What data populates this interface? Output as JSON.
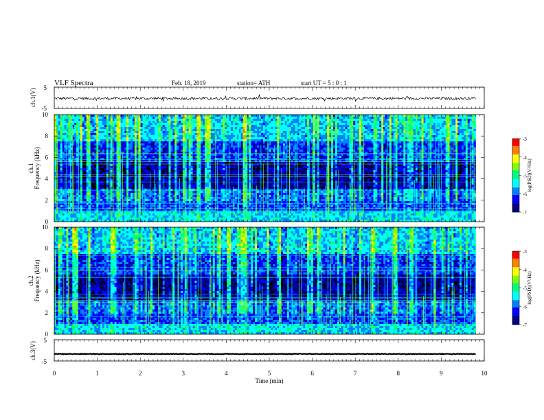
{
  "header": {
    "title": "VLF  Spectra",
    "date": "Feb. 18, 2019",
    "station": "station= ATH",
    "start_ut": "start  UT  =    5  : 0   : 1"
  },
  "chart_data": [
    {
      "type": "line",
      "name": "ch1-waveform",
      "ylabel": "ch.1(V)",
      "ylim": [
        -5,
        5
      ],
      "yticks": [
        "5",
        "-5"
      ],
      "xlim": [
        0,
        10
      ],
      "x_extent_min": 9.8,
      "baseline": -0.3,
      "noise": 0.6
    },
    {
      "type": "heatmap",
      "name": "ch1-spectrogram",
      "ylabel": "ch.1\nFrequency  (kHz)",
      "ylim": [
        0,
        10
      ],
      "yticks": [
        "0",
        "2",
        "4",
        "6",
        "8",
        "10"
      ],
      "xlim": [
        0,
        10
      ],
      "x_extent_min": 9.8,
      "colorbar": {
        "label": "log(PSD)(V²/Hz)",
        "range": [
          -7,
          -3
        ],
        "ticks": [
          "-3",
          "-4",
          "-5",
          "-6",
          "-7"
        ]
      }
    },
    {
      "type": "heatmap",
      "name": "ch2-spectrogram",
      "ylabel": "ch.2\nFrequency  (kHz)",
      "ylim": [
        0,
        10
      ],
      "yticks": [
        "0",
        "2",
        "4",
        "6",
        "8",
        "10"
      ],
      "xlim": [
        0,
        10
      ],
      "x_extent_min": 9.8,
      "colorbar": {
        "label": "log(PSD)(V²/Hz)",
        "range": [
          -7,
          -3
        ],
        "ticks": [
          "-3",
          "-4",
          "-5",
          "-6",
          "-7"
        ]
      }
    },
    {
      "type": "line",
      "name": "ch3-waveform",
      "ylabel": "ch.3(V)",
      "ylim": [
        -5,
        5
      ],
      "yticks": [
        "5",
        "-5"
      ],
      "xlim": [
        0,
        10
      ],
      "x_extent_min": 9.8,
      "baseline": -1.7,
      "noise": 0.15,
      "xlabel": "Time  (min)",
      "xticks": [
        "0",
        "1",
        "2",
        "3",
        "4",
        "5",
        "6",
        "7",
        "8",
        "9",
        "10"
      ]
    }
  ],
  "colors": {
    "waveform": "#000000",
    "frame": "#000000",
    "colormap": [
      "#000000",
      "#000080",
      "#0000ff",
      "#0080ff",
      "#00ffff",
      "#00ff80",
      "#80ff00",
      "#ffff00",
      "#ff8000",
      "#ff0000",
      "#ffffff"
    ]
  }
}
